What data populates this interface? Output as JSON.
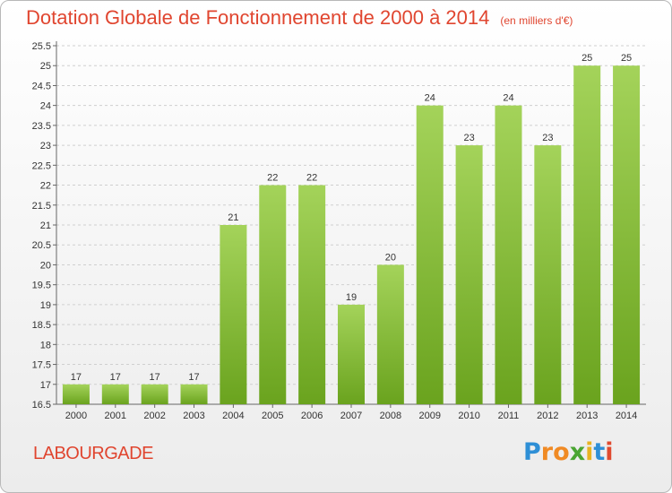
{
  "header": {
    "title": "Dotation Globale de Fonctionnement de 2000 à 2014",
    "subtitle": "(en milliers d'€)"
  },
  "footer": {
    "commune": "LABOURGADE",
    "logo_text": "Proxiti"
  },
  "colors": {
    "title": "#e0452f",
    "bar_light": "#a4d35a",
    "bar_dark": "#6aa31e",
    "grid": "#cfcfcf"
  },
  "chart_data": {
    "type": "bar",
    "title": "Dotation Globale de Fonctionnement de 2000 à 2014",
    "subtitle": "(en milliers d'€)",
    "xlabel": "",
    "ylabel": "",
    "categories": [
      "2000",
      "2001",
      "2002",
      "2003",
      "2004",
      "2005",
      "2006",
      "2007",
      "2008",
      "2009",
      "2010",
      "2011",
      "2012",
      "2013",
      "2014"
    ],
    "values": [
      17,
      17,
      17,
      17,
      21,
      22,
      22,
      19,
      20,
      24,
      23,
      24,
      23,
      25,
      25
    ],
    "ylim": [
      16.5,
      25.5
    ],
    "yticks": [
      "16.5",
      "17",
      "17.5",
      "18",
      "18.5",
      "19",
      "19.5",
      "20",
      "20.5",
      "21",
      "21.5",
      "22",
      "22.5",
      "23",
      "23.5",
      "24",
      "24.5",
      "25",
      "25.5"
    ],
    "grid": true,
    "legend": "none"
  }
}
